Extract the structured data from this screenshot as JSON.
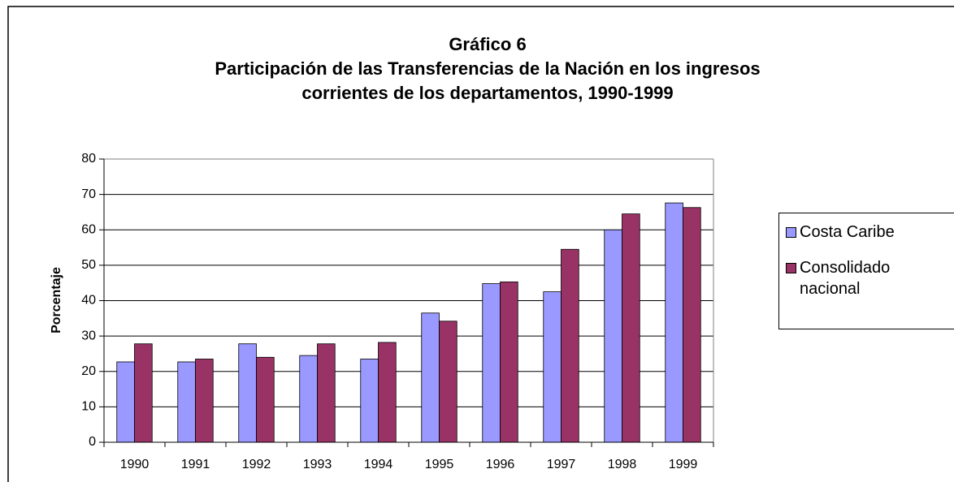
{
  "chart_data": {
    "type": "bar",
    "title": [
      "Gráfico 6",
      "Participación de las Transferencias de la Nación en los ingresos",
      "corrientes de los departamentos, 1990-1999"
    ],
    "y_label": "Porcentaje",
    "categories": [
      "1990",
      "1991",
      "1992",
      "1993",
      "1994",
      "1995",
      "1996",
      "1997",
      "1998",
      "1999"
    ],
    "series": [
      {
        "name": "Costa Caribe",
        "color": "#9999ff",
        "values": [
          22.7,
          22.7,
          27.8,
          24.5,
          23.5,
          36.5,
          44.8,
          42.5,
          60.0,
          67.6
        ]
      },
      {
        "name": "Consolidado nacional",
        "color": "#993366",
        "values": [
          27.8,
          23.5,
          24.0,
          27.8,
          28.2,
          34.2,
          45.3,
          54.5,
          64.5,
          66.3
        ]
      }
    ],
    "ylim": [
      0,
      80
    ],
    "yticks": [
      0,
      10,
      20,
      30,
      40,
      50,
      60,
      70,
      80
    ],
    "grid": true,
    "legend": "right"
  }
}
